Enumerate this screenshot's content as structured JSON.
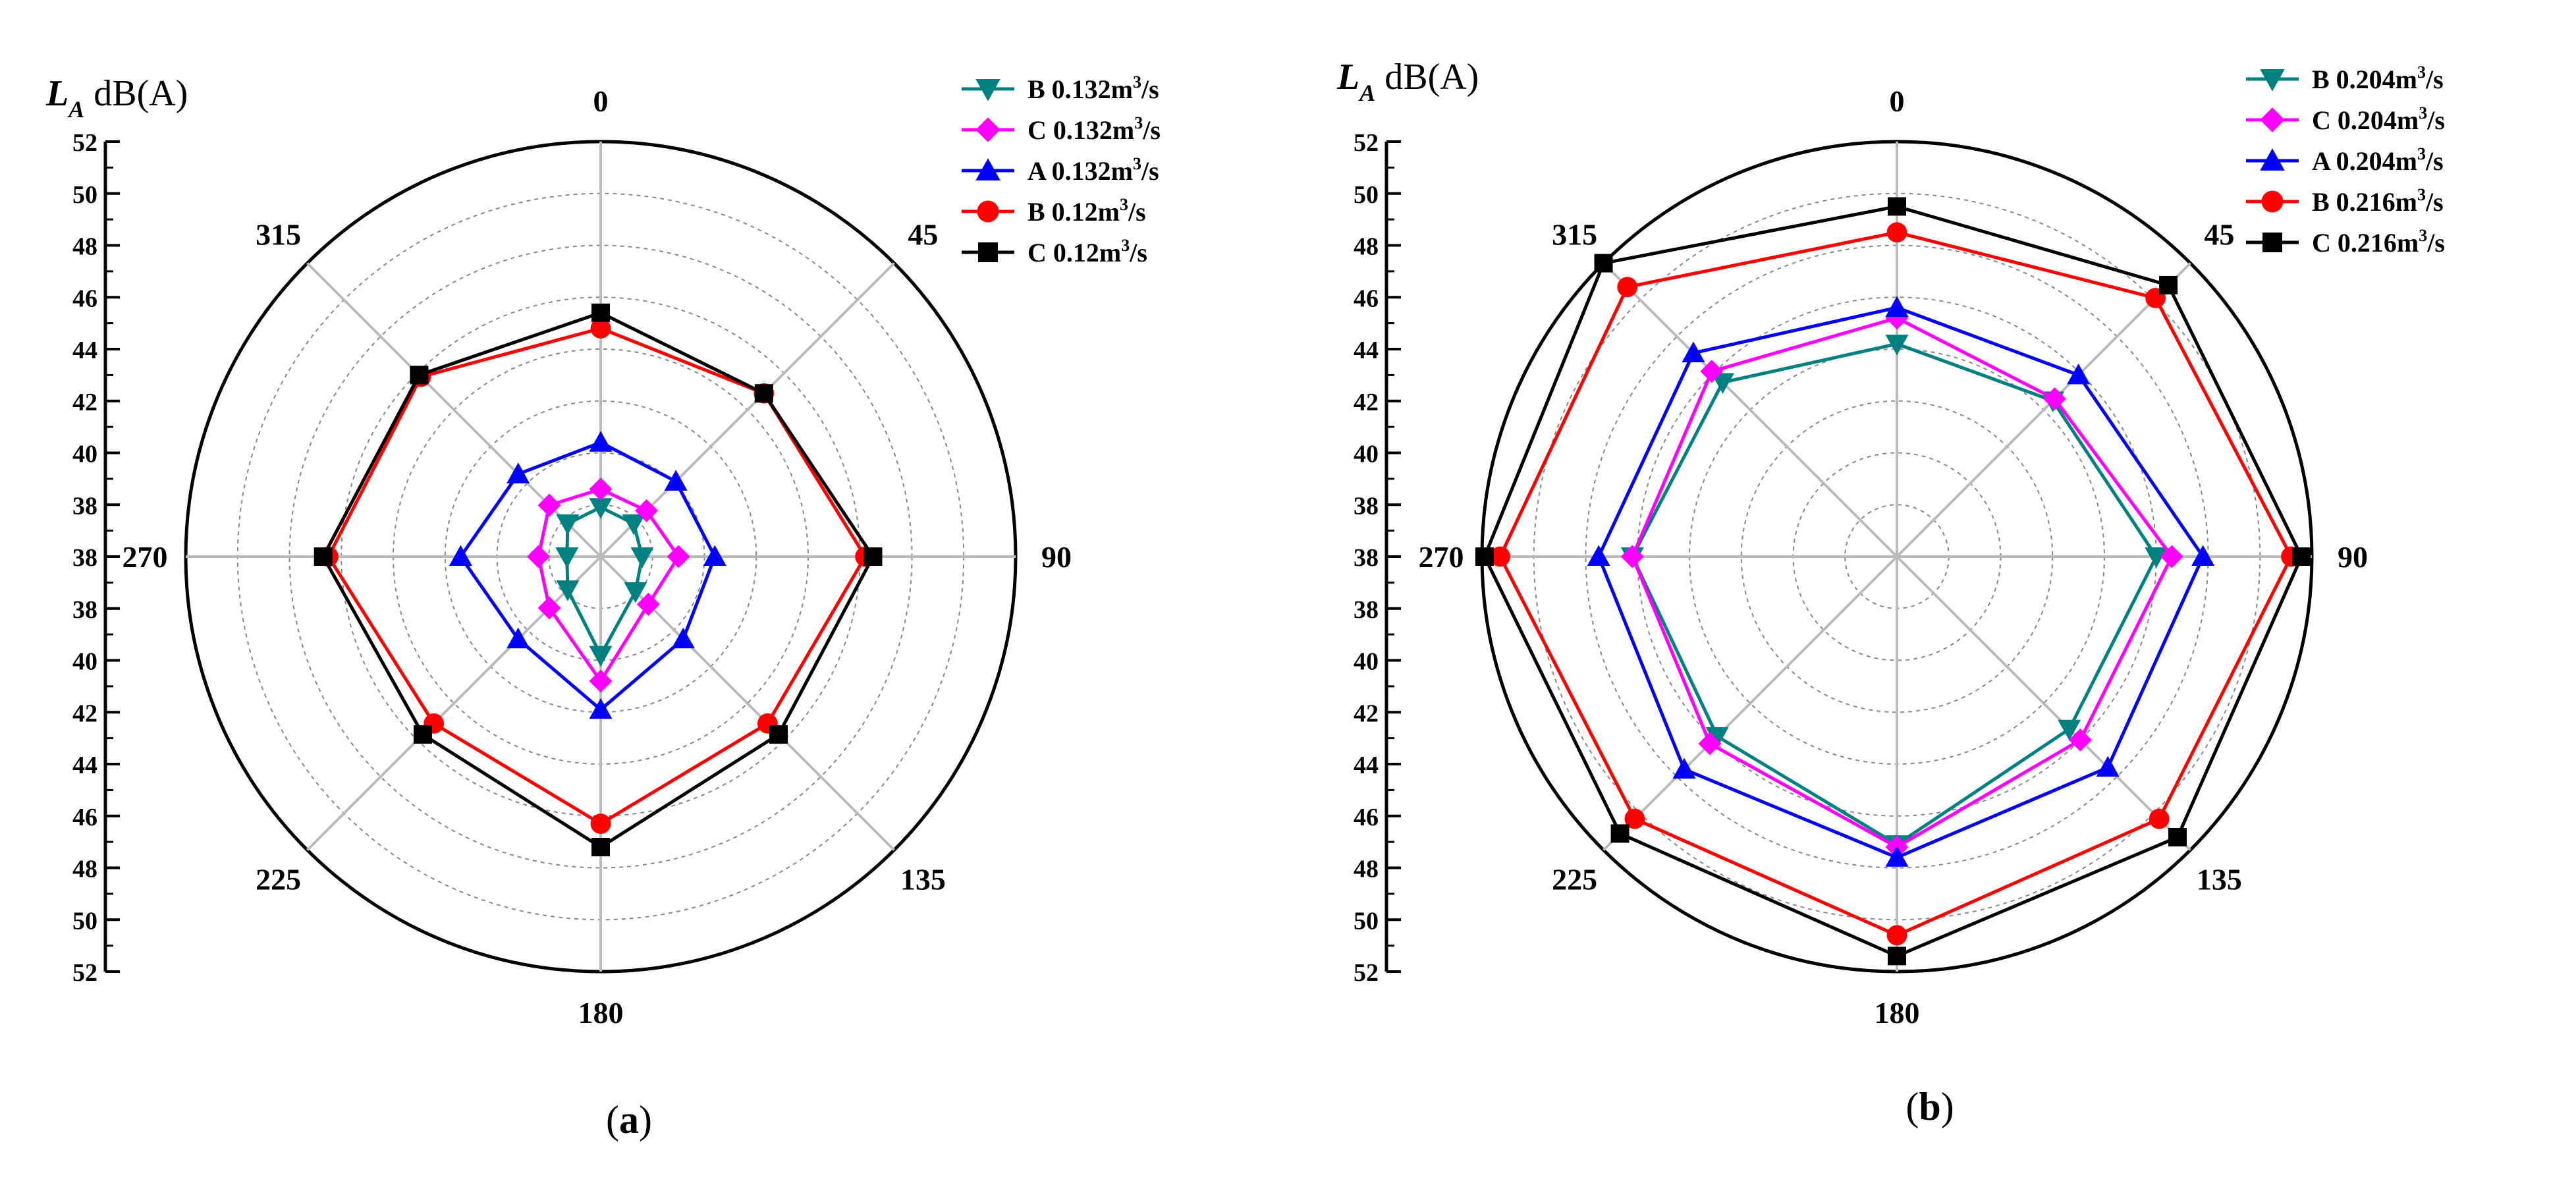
{
  "chart_data": [
    {
      "type": "radar",
      "panel_label": "a",
      "ylabel_symbol": "L",
      "ylabel_subscript": "A",
      "ylabel_unit": "dB(A)",
      "r_range": [
        36,
        52
      ],
      "grid": true,
      "axis_ticks": [
        "52",
        "50",
        "48",
        "46",
        "44",
        "42",
        "40",
        "38",
        "38",
        "38",
        "40",
        "42",
        "44",
        "46",
        "48",
        "50",
        "52"
      ],
      "angles": [
        0,
        45,
        90,
        135,
        180,
        225,
        270,
        315
      ],
      "angle_labels": [
        "0",
        "45",
        "90",
        "135",
        "180",
        "225",
        "270",
        "315"
      ],
      "legend_position": "top-right",
      "series": [
        {
          "point": "B",
          "flow": "0.132",
          "unit_prefix": "m",
          "unit_exp": "3",
          "unit_suffix": "/s",
          "color": "#008080",
          "marker": "triangle-down",
          "values": [
            37.9,
            37.8,
            37.6,
            37.9,
            39.8,
            37.8,
            37.3,
            37.8
          ]
        },
        {
          "point": "C",
          "flow": "0.132",
          "unit_prefix": "m",
          "unit_exp": "3",
          "unit_suffix": "/s",
          "color": "#ff00ff",
          "marker": "diamond",
          "values": [
            38.6,
            38.5,
            39.0,
            38.6,
            40.8,
            38.8,
            38.4,
            38.8
          ]
        },
        {
          "point": "A",
          "flow": "0.132",
          "unit_prefix": "m",
          "unit_exp": "3",
          "unit_suffix": "/s",
          "color": "#0000ff",
          "marker": "triangle-up",
          "values": [
            40.4,
            40.1,
            40.4,
            40.5,
            41.9,
            40.5,
            41.4,
            40.5
          ]
        },
        {
          "point": "B",
          "flow": "0.12",
          "unit_prefix": "m",
          "unit_exp": "3",
          "unit_suffix": "/s",
          "color": "#ff0000",
          "marker": "circle",
          "values": [
            44.8,
            44.9,
            46.2,
            45.1,
            46.3,
            45.1,
            46.5,
            45.8
          ]
        },
        {
          "point": "C",
          "flow": "0.12",
          "unit_prefix": "m",
          "unit_exp": "3",
          "unit_suffix": "/s",
          "color": "#000000",
          "marker": "square",
          "values": [
            45.4,
            44.9,
            46.5,
            45.7,
            47.2,
            45.7,
            46.7,
            45.9
          ]
        }
      ]
    },
    {
      "type": "radar",
      "panel_label": "b",
      "ylabel_symbol": "L",
      "ylabel_subscript": "A",
      "ylabel_unit": "dB(A)",
      "r_range": [
        36,
        52
      ],
      "grid": true,
      "axis_ticks": [
        "52",
        "50",
        "48",
        "46",
        "44",
        "42",
        "40",
        "38",
        "38",
        "38",
        "40",
        "42",
        "44",
        "46",
        "48",
        "50",
        "52"
      ],
      "angles": [
        0,
        45,
        90,
        135,
        180,
        225,
        270,
        315
      ],
      "angle_labels": [
        "0",
        "45",
        "90",
        "135",
        "180",
        "225",
        "270",
        "315"
      ],
      "legend_position": "top-right",
      "series": [
        {
          "point": "B",
          "flow": "0.204",
          "unit_prefix": "m",
          "unit_exp": "3",
          "unit_suffix": "/s",
          "color": "#008080",
          "marker": "triangle-down",
          "values": [
            44.2,
            44.5,
            46.0,
            45.4,
            47.1,
            45.8,
            46.2,
            45.5
          ]
        },
        {
          "point": "C",
          "flow": "0.204",
          "unit_prefix": "m",
          "unit_exp": "3",
          "unit_suffix": "/s",
          "color": "#ff00ff",
          "marker": "diamond",
          "values": [
            45.2,
            44.6,
            46.6,
            46.0,
            47.2,
            46.2,
            46.2,
            46.1
          ]
        },
        {
          "point": "A",
          "flow": "0.204",
          "unit_prefix": "m",
          "unit_exp": "3",
          "unit_suffix": "/s",
          "color": "#0000ff",
          "marker": "triangle-up",
          "values": [
            45.6,
            45.9,
            47.8,
            47.5,
            47.6,
            47.6,
            47.5,
            47.1
          ]
        },
        {
          "point": "B",
          "flow": "0.216",
          "unit_prefix": "m",
          "unit_exp": "3",
          "unit_suffix": "/s",
          "color": "#ff0000",
          "marker": "circle",
          "values": [
            48.5,
            50.1,
            51.2,
            50.3,
            50.6,
            50.3,
            51.3,
            50.7
          ]
        },
        {
          "point": "C",
          "flow": "0.216",
          "unit_prefix": "m",
          "unit_exp": "3",
          "unit_suffix": "/s",
          "color": "#000000",
          "marker": "square",
          "values": [
            49.5,
            50.8,
            51.6,
            51.3,
            51.4,
            51.1,
            51.9,
            52.0
          ]
        }
      ]
    }
  ]
}
